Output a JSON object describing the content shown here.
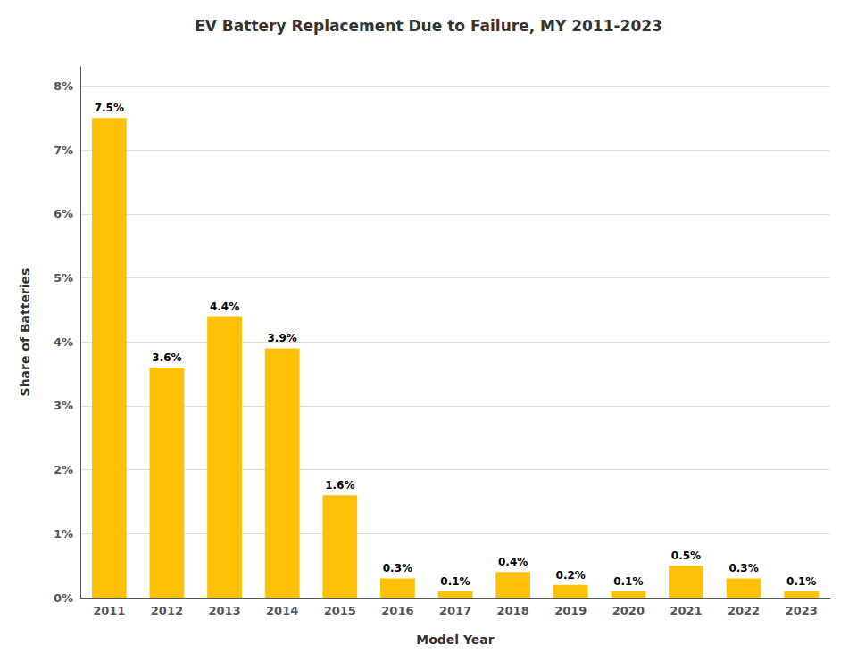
{
  "chart_data": {
    "type": "bar",
    "title": "EV Battery Replacement Due to Failure, MY 2011-2023",
    "xlabel": "Model Year",
    "ylabel": "Share of Batteries",
    "categories": [
      "2011",
      "2012",
      "2013",
      "2014",
      "2015",
      "2016",
      "2017",
      "2018",
      "2019",
      "2020",
      "2021",
      "2022",
      "2023"
    ],
    "values": [
      7.5,
      3.6,
      4.4,
      3.9,
      1.6,
      0.3,
      0.1,
      0.4,
      0.2,
      0.1,
      0.5,
      0.3,
      0.1
    ],
    "value_labels": [
      "7.5%",
      "3.6%",
      "4.4%",
      "3.9%",
      "1.6%",
      "0.3%",
      "0.1%",
      "0.4%",
      "0.2%",
      "0.1%",
      "0.5%",
      "0.3%",
      "0.1%"
    ],
    "data_labels": true,
    "color": "#FFC107",
    "ylim": [
      0,
      8.3
    ],
    "yticks": [
      {
        "value": 0,
        "label": "0%"
      },
      {
        "value": 1,
        "label": "1%"
      },
      {
        "value": 2,
        "label": "2%"
      },
      {
        "value": 3,
        "label": "3%"
      },
      {
        "value": 4,
        "label": "4%"
      },
      {
        "value": 5,
        "label": "5%"
      },
      {
        "value": 6,
        "label": "6%"
      },
      {
        "value": 7,
        "label": "7%"
      },
      {
        "value": 8,
        "label": "8%"
      }
    ],
    "grid": true
  }
}
